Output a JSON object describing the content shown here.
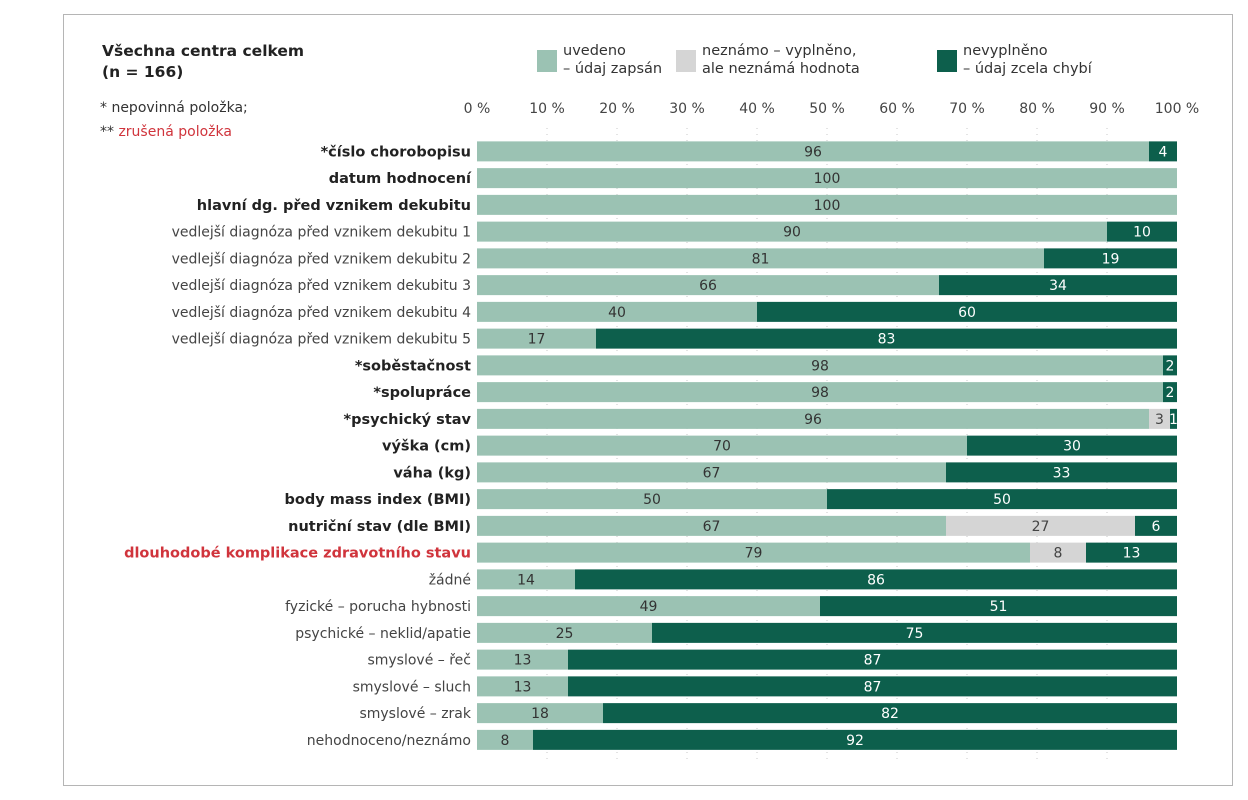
{
  "title_line1": "Všechna centra celkem",
  "title_line2": "(n = 166)",
  "note_optional": "* nepovinná položka;",
  "note_cancelled_prefix": "** ",
  "note_cancelled": "zrušená položka",
  "legend": [
    {
      "line1": "uvedeno",
      "line2": "– údaj zapsán",
      "color": "#9bc2b3"
    },
    {
      "line1": "neznámo – vyplněno,",
      "line2": "ale neznámá hodnota",
      "color": "#d5d5d5"
    },
    {
      "line1": "nevyplněno",
      "line2": "– údaj zcela chybí",
      "color": "#0d5f4c"
    }
  ],
  "chart_data": {
    "type": "bar",
    "orientation": "horizontal",
    "stacked": true,
    "xlim": [
      0,
      100
    ],
    "xticks": [
      "0 %",
      "10 %",
      "20 %",
      "30 %",
      "40 %",
      "50 %",
      "60 %",
      "70 %",
      "80 %",
      "90 %",
      "100 %"
    ],
    "series_colors": [
      "#9bc2b3",
      "#d5d5d5",
      "#0d5f4c"
    ],
    "categories": [
      "*číslo chorobopisu",
      "datum hodnocení",
      "hlavní dg. před vznikem dekubitu",
      "vedlejší diagnóza před vznikem dekubitu 1",
      "vedlejší diagnóza před vznikem dekubitu 2",
      "vedlejší diagnóza před vznikem dekubitu 3",
      "vedlejší diagnóza před vznikem dekubitu 4",
      "vedlejší diagnóza před vznikem dekubitu 5",
      "*soběstačnost",
      "*spolupráce",
      "*psychický stav",
      "výška (cm)",
      "váha (kg)",
      "body mass index (BMI)",
      "nutriční stav (dle BMI)",
      "dlouhodobé komplikace zdravotního stavu",
      "žádné",
      "fyzické – porucha hybnosti",
      "psychické – neklid/apatie",
      "smyslové – řeč",
      "smyslové – sluch",
      "smyslové – zrak",
      "nehodnoceno/neznámo"
    ],
    "label_style": [
      "bold",
      "bold",
      "bold",
      "normal",
      "normal",
      "normal",
      "normal",
      "normal",
      "bold",
      "bold",
      "bold",
      "bold",
      "bold",
      "bold",
      "bold",
      "red",
      "normal",
      "normal",
      "normal",
      "normal",
      "normal",
      "normal",
      "normal"
    ],
    "series": [
      {
        "values": [
          96,
          100,
          100,
          90,
          81,
          66,
          40,
          17,
          98,
          98,
          96,
          70,
          67,
          50,
          67,
          79,
          14,
          49,
          25,
          13,
          13,
          18,
          8
        ]
      },
      {
        "values": [
          0,
          0,
          0,
          0,
          0,
          0,
          0,
          0,
          0,
          0,
          3,
          0,
          0,
          0,
          27,
          8,
          0,
          0,
          0,
          0,
          0,
          0,
          0
        ]
      },
      {
        "values": [
          4,
          0,
          0,
          10,
          19,
          34,
          60,
          83,
          2,
          2,
          1,
          30,
          33,
          50,
          6,
          13,
          86,
          51,
          75,
          87,
          87,
          82,
          92
        ]
      }
    ]
  }
}
